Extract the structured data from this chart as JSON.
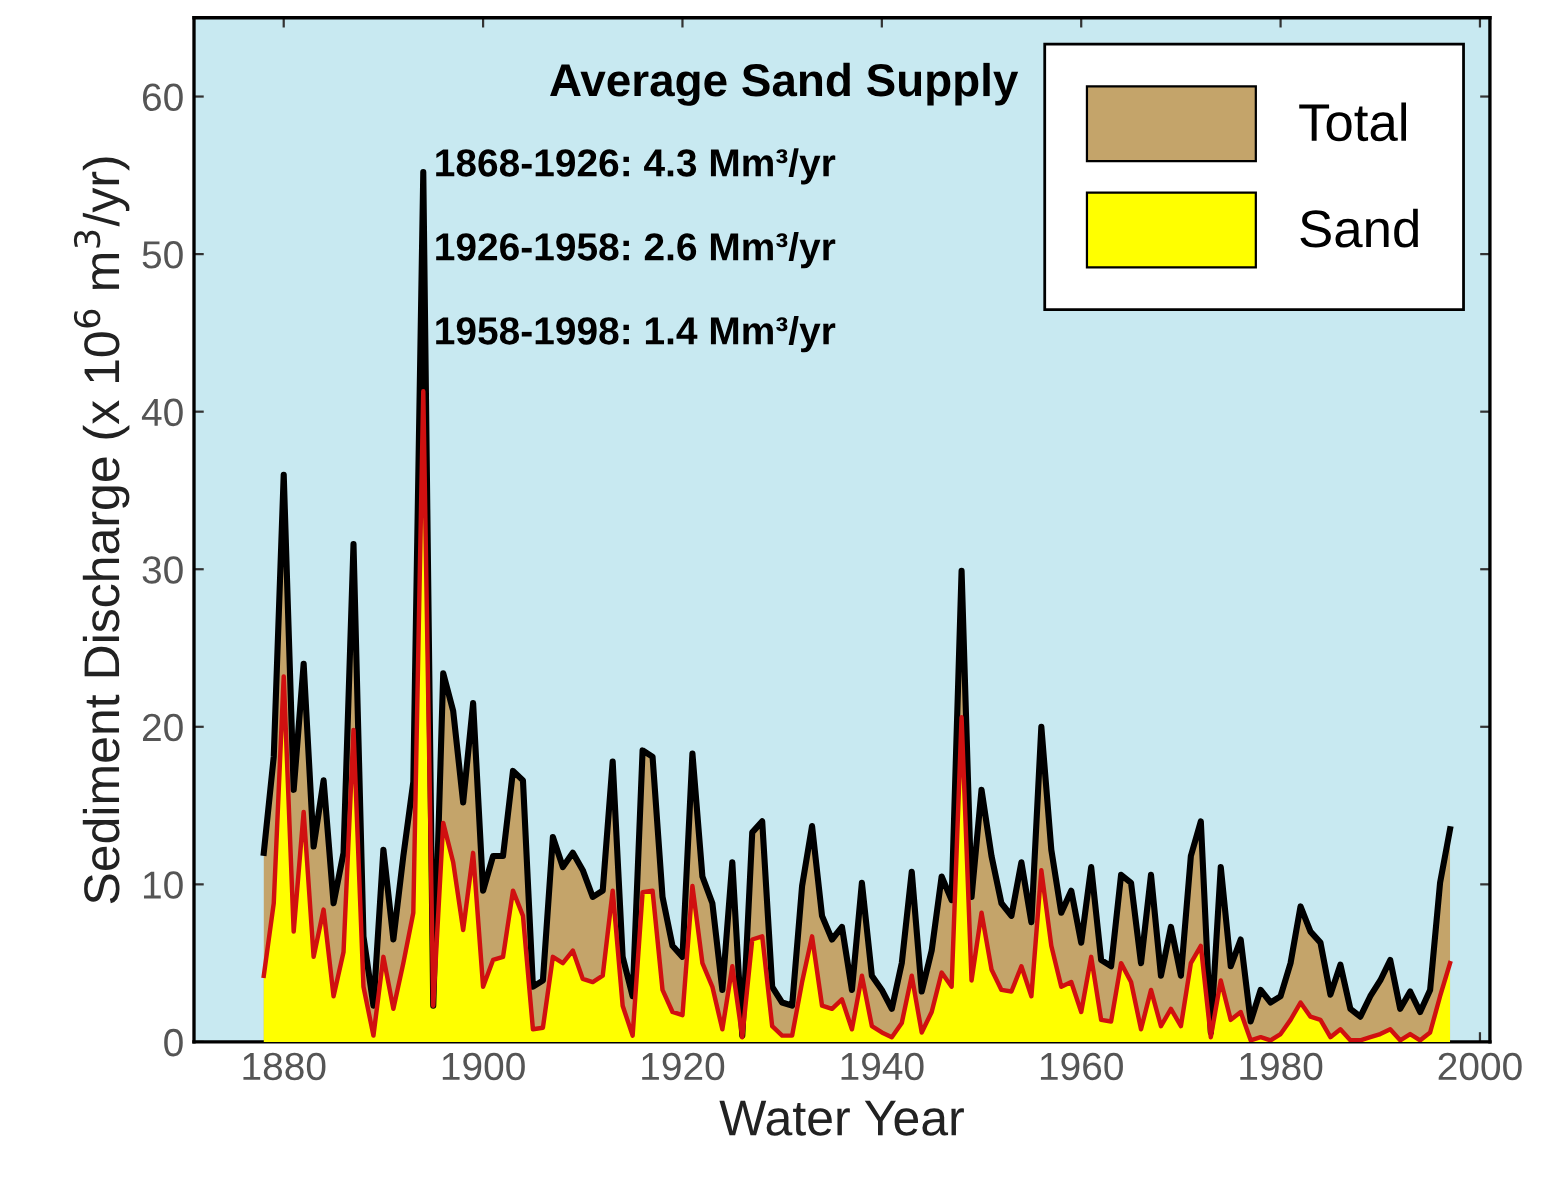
{
  "chart_data": {
    "type": "area",
    "xlabel": "Water Year",
    "ylabel": "Sediment Discharge (x 10$^{6}$ m$^{3}$/yr)",
    "annotations": [
      "Average Sand Supply",
      "1868-1926: 4.3 Mm³/yr",
      "1926-1958: 2.6 Mm³/yr",
      "1958-1998: 1.4 Mm³/yr"
    ],
    "x": [
      1878,
      1879,
      1880,
      1881,
      1882,
      1883,
      1884,
      1885,
      1886,
      1887,
      1888,
      1889,
      1890,
      1891,
      1892,
      1893,
      1894,
      1895,
      1896,
      1897,
      1898,
      1899,
      1900,
      1901,
      1902,
      1903,
      1904,
      1905,
      1906,
      1907,
      1908,
      1909,
      1910,
      1911,
      1912,
      1913,
      1914,
      1915,
      1916,
      1917,
      1918,
      1919,
      1920,
      1921,
      1922,
      1923,
      1924,
      1925,
      1926,
      1927,
      1928,
      1929,
      1930,
      1931,
      1932,
      1933,
      1934,
      1935,
      1936,
      1937,
      1938,
      1939,
      1940,
      1941,
      1942,
      1943,
      1944,
      1945,
      1946,
      1947,
      1948,
      1949,
      1950,
      1951,
      1952,
      1953,
      1954,
      1955,
      1956,
      1957,
      1958,
      1959,
      1960,
      1961,
      1962,
      1963,
      1964,
      1965,
      1966,
      1967,
      1968,
      1969,
      1970,
      1971,
      1972,
      1973,
      1974,
      1975,
      1976,
      1977,
      1978,
      1979,
      1980,
      1981,
      1982,
      1983,
      1984,
      1985,
      1986,
      1987,
      1988,
      1989,
      1990,
      1991,
      1992,
      1993,
      1994,
      1995,
      1996,
      1997
    ],
    "series": [
      {
        "name": "Total",
        "color": "#c4a46a",
        "values": [
          12.0,
          18.1,
          36.0,
          16.0,
          24.0,
          12.4,
          16.6,
          8.8,
          12.0,
          31.6,
          6.7,
          2.3,
          12.2,
          6.5,
          11.8,
          16.5,
          55.2,
          2.3,
          23.4,
          21.0,
          15.2,
          21.5,
          9.6,
          11.8,
          11.8,
          17.2,
          16.6,
          3.5,
          3.9,
          13.0,
          11.1,
          12.0,
          10.9,
          9.2,
          9.6,
          17.8,
          5.4,
          2.9,
          18.5,
          18.1,
          9.2,
          6.1,
          5.4,
          18.3,
          10.5,
          8.8,
          3.3,
          11.4,
          0.4,
          13.3,
          14.0,
          3.5,
          2.5,
          2.3,
          9.9,
          13.7,
          8.0,
          6.5,
          7.3,
          3.3,
          10.1,
          4.2,
          3.3,
          2.1,
          5.0,
          10.8,
          3.2,
          5.8,
          10.5,
          9.0,
          29.9,
          9.2,
          16.0,
          11.8,
          8.8,
          8.0,
          11.4,
          7.6,
          20.0,
          12.2,
          8.2,
          9.6,
          6.3,
          11.1,
          5.2,
          4.8,
          10.6,
          10.1,
          5.0,
          10.6,
          4.2,
          7.3,
          4.2,
          11.8,
          14.0,
          0.6,
          11.1,
          4.8,
          6.5,
          1.3,
          3.3,
          2.5,
          2.9,
          5.0,
          8.6,
          7.0,
          6.3,
          3.0,
          4.9,
          2.1,
          1.6,
          2.9,
          3.9,
          5.2,
          2.1,
          3.2,
          1.9,
          3.3,
          10.1,
          13.5
        ]
      },
      {
        "name": "Sand",
        "color": "#ffff00",
        "values": [
          4.2,
          8.8,
          23.2,
          7.0,
          14.6,
          5.4,
          8.4,
          2.9,
          5.7,
          19.8,
          3.5,
          0.4,
          5.4,
          2.1,
          5.0,
          8.2,
          41.3,
          2.3,
          13.9,
          11.4,
          7.1,
          12.0,
          3.5,
          5.2,
          5.4,
          9.6,
          8.0,
          0.8,
          0.9,
          5.4,
          5.0,
          5.8,
          4.0,
          3.8,
          4.2,
          9.6,
          2.3,
          0.4,
          9.5,
          9.6,
          3.3,
          1.9,
          1.7,
          9.9,
          5.0,
          3.5,
          0.8,
          4.8,
          0.3,
          6.5,
          6.7,
          1.0,
          0.4,
          0.4,
          3.8,
          6.7,
          2.3,
          2.1,
          2.7,
          0.8,
          4.2,
          1.0,
          0.6,
          0.3,
          1.2,
          4.2,
          0.6,
          1.9,
          4.4,
          3.5,
          20.6,
          3.9,
          8.2,
          4.6,
          3.3,
          3.2,
          4.8,
          2.9,
          10.9,
          6.1,
          3.5,
          3.8,
          1.9,
          5.4,
          1.4,
          1.3,
          5.0,
          3.8,
          0.8,
          3.3,
          1.0,
          2.1,
          1.0,
          5.0,
          6.1,
          0.3,
          3.9,
          1.4,
          1.9,
          0.1,
          0.3,
          0.1,
          0.5,
          1.4,
          2.5,
          1.6,
          1.4,
          0.3,
          0.8,
          0.1,
          0.1,
          0.3,
          0.5,
          0.8,
          0.1,
          0.5,
          0.1,
          0.6,
          2.9,
          5.0
        ]
      }
    ],
    "xlim": [
      1871,
      2001
    ],
    "ylim": [
      0,
      65
    ],
    "xticks": [
      1880,
      1900,
      1920,
      1940,
      1960,
      1980,
      2000
    ],
    "yticks": [
      0,
      10,
      20,
      30,
      40,
      50,
      60
    ],
    "grid": false,
    "legend": "top right"
  }
}
